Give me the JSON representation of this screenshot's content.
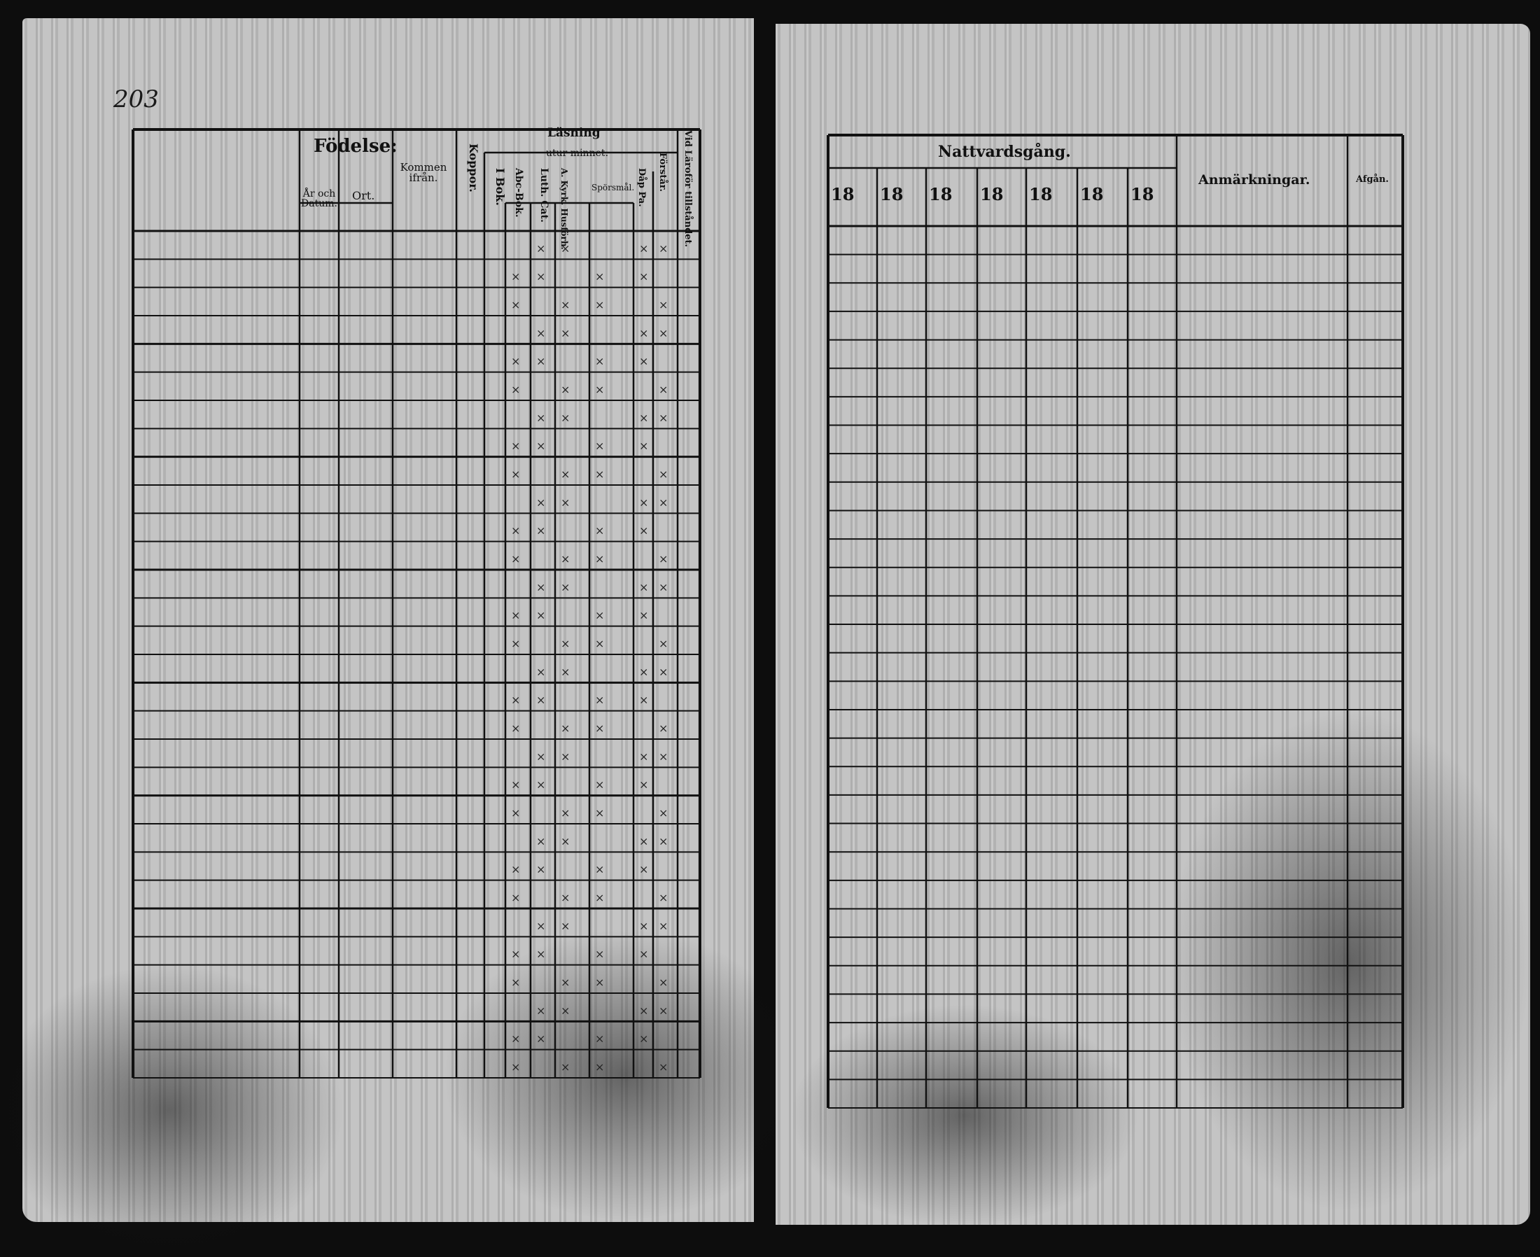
{
  "document": {
    "type": "household examination register (husförhörslängd)",
    "left_page": {
      "headers": {
        "birth": "Födelse:",
        "birth_year_date": "År och Datum.",
        "birth_place": "Ort.",
        "came_from": "Kommen ifrån.",
        "smallpox": "Koppor.",
        "reading": "Läsning",
        "by_heart": "utur minnet:",
        "in_book": "I Bok.",
        "abc_book": "Abc-Bok.",
        "luth_cat": "Luth. Cat.",
        "a_kyrk_husf": "A. Kyrk. Husförh.",
        "sporsmal": "Spörsmål.",
        "dop_pa": "Dåp Pa.",
        "forstar": "Förstår.",
        "vid_larofor": "Vid Läroför tillståndet."
      },
      "handwritten_title": "203",
      "row_count": 30
    },
    "right_page": {
      "headers": {
        "communion": "Nattvardsgång.",
        "years": [
          "18",
          "18",
          "18",
          "18",
          "18",
          "18",
          "18"
        ],
        "remarks": "Anmärkningar.",
        "departed": "Afgån."
      },
      "row_count": 31
    }
  },
  "colors": {
    "paper": "#bdbdbd",
    "ink": "#111111",
    "background": "#0d0d0d"
  }
}
